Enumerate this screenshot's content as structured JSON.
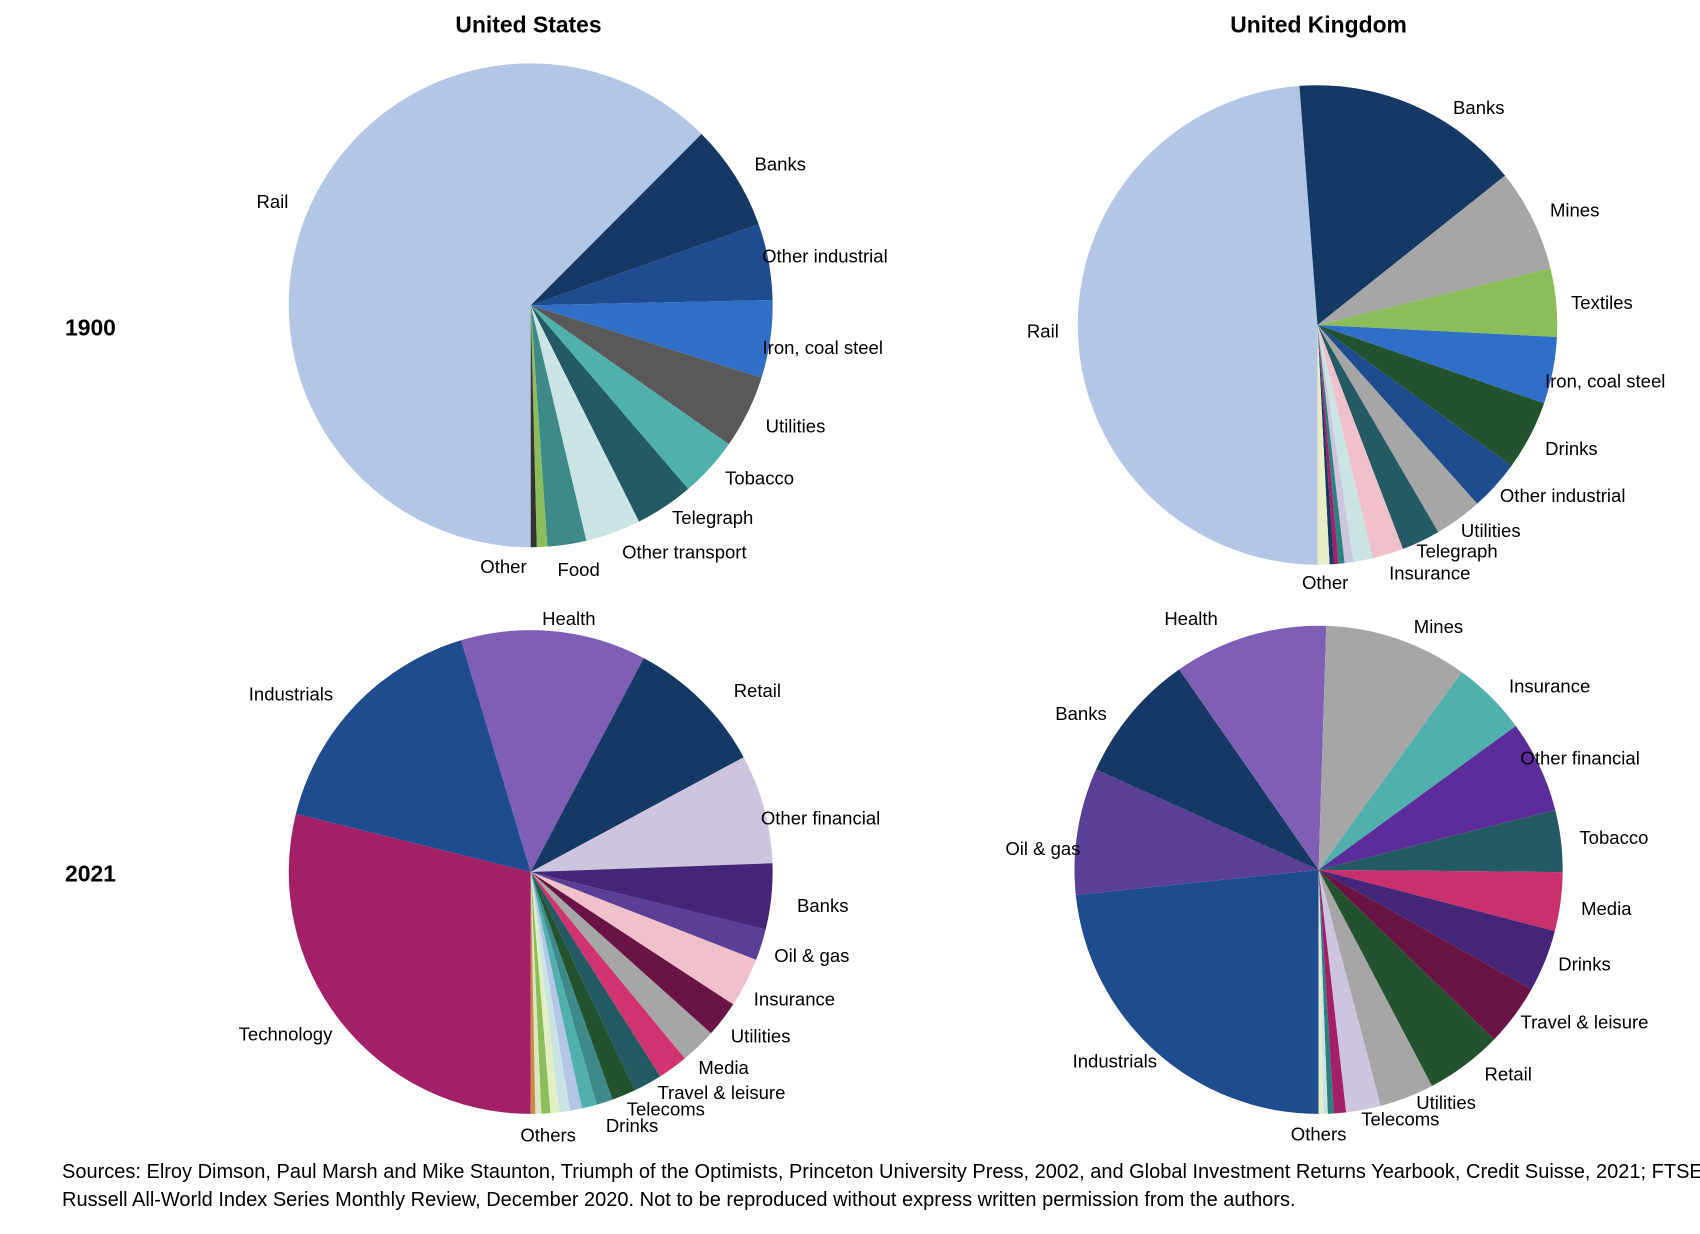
{
  "column_titles": [
    "United States",
    "United Kingdom"
  ],
  "row_labels": [
    "1900",
    "2021"
  ],
  "footnote": "Sources: Elroy Dimson, Paul Marsh and Mike Staunton, Triumph of the Optimists, Princeton University Press, 2002, and Global Investment Returns Yearbook, Credit Suisse, 2021; FTSE Russell All-World Index Series Monthly Review, December 2020. Not to be reproduced without express written permission from the authors.",
  "chart_data": [
    {
      "type": "pie",
      "categories": [
        "Rail",
        "Banks",
        "Other industrial",
        "Iron, coal steel",
        "Utilities",
        "Tobacco",
        "Telegraph",
        "Other transport",
        "Food",
        null,
        "Other"
      ],
      "values": [
        62.6,
        7.1,
        5.1,
        5.2,
        4.9,
        4.0,
        3.9,
        3.7,
        2.6,
        0.7,
        0.4
      ],
      "colors": [
        "#b3c6e6",
        "#163865",
        "#1f4b8f",
        "#2f6fc7",
        "#595959",
        "#4fb0ad",
        "#235a64",
        "#c9e4e2",
        "#3e8a8a",
        "#8bbd5a",
        "#333333"
      ]
    },
    {
      "type": "pie",
      "categories": [
        "Rail",
        "Banks",
        "Mines",
        "Textiles",
        "Iron, coal steel",
        "Drinks",
        "Other industrial",
        "Utilities",
        "Telegraph",
        "Insurance",
        null,
        null,
        null,
        null,
        null,
        "Other"
      ],
      "values": [
        48.8,
        15.5,
        6.9,
        4.6,
        4.5,
        4.7,
        3.4,
        3.2,
        2.6,
        2.1,
        1.3,
        0.6,
        0.4,
        0.3,
        0.3,
        0.8
      ],
      "colors": [
        "#b3c6e6",
        "#163865",
        "#a6a6a6",
        "#8bbd5a",
        "#2f6fc7",
        "#23532e",
        "#1f4b8f",
        "#a6a6a6",
        "#235a64",
        "#f0c0cb",
        "#c9e4e2",
        "#cdc4de",
        "#2d8080",
        "#a31f68",
        "#163865",
        "#e8efc4"
      ]
    },
    {
      "type": "pie",
      "categories": [
        "Technology",
        "Industrials",
        "Health",
        "Retail",
        "Other financial",
        "Banks",
        "Oil & gas",
        "Insurance",
        "Utilities",
        "Media",
        "Travel & leisure",
        "Telecoms",
        "Drinks",
        null,
        null,
        null,
        null,
        "Others",
        null,
        null,
        null
      ],
      "values": [
        28.9,
        16.5,
        12.4,
        9.4,
        7.3,
        4.4,
        2.1,
        3.3,
        2.4,
        2.4,
        2.0,
        1.9,
        1.6,
        1.1,
        1.0,
        0.8,
        0.7,
        0.6,
        0.6,
        0.4,
        0.3
      ],
      "colors": [
        "#a31f68",
        "#1f4b8f",
        "#7f5fb5",
        "#163865",
        "#cdc4de",
        "#452577",
        "#5b3f96",
        "#f0c0cb",
        "#6a1446",
        "#a6a6a6",
        "#d0336f",
        "#235a64",
        "#23532e",
        "#3e8a8a",
        "#4fb0ad",
        "#b3c6e6",
        "#c9e4e2",
        "#e2efc4",
        "#8bbd5a",
        "#d9e8c0",
        "#cc8844"
      ]
    },
    {
      "type": "pie",
      "categories": [
        "Industrials",
        "Oil & gas",
        "Banks",
        "Health",
        "Mines",
        "Insurance",
        "Other financial",
        "Tobacco",
        "Media",
        "Drinks",
        "Travel & leisure",
        "Retail",
        "Utilities",
        "Telecoms",
        null,
        null,
        "Others",
        null
      ],
      "values": [
        23.4,
        8.4,
        8.6,
        10.2,
        9.5,
        5.0,
        6.1,
        4.1,
        3.9,
        4.1,
        4.1,
        5.1,
        3.6,
        2.3,
        0.8,
        0.4,
        0.3,
        0.3
      ],
      "colors": [
        "#1f4b8f",
        "#5b3f96",
        "#163865",
        "#7f5fb5",
        "#a6a6a6",
        "#4fb0ad",
        "#5b2c9a",
        "#235a64",
        "#c8306e",
        "#452577",
        "#6a1446",
        "#23532e",
        "#a6a6a6",
        "#cdc4de",
        "#a31f68",
        "#2d8080",
        "#c9e4e2",
        "#e2efc4"
      ]
    }
  ]
}
